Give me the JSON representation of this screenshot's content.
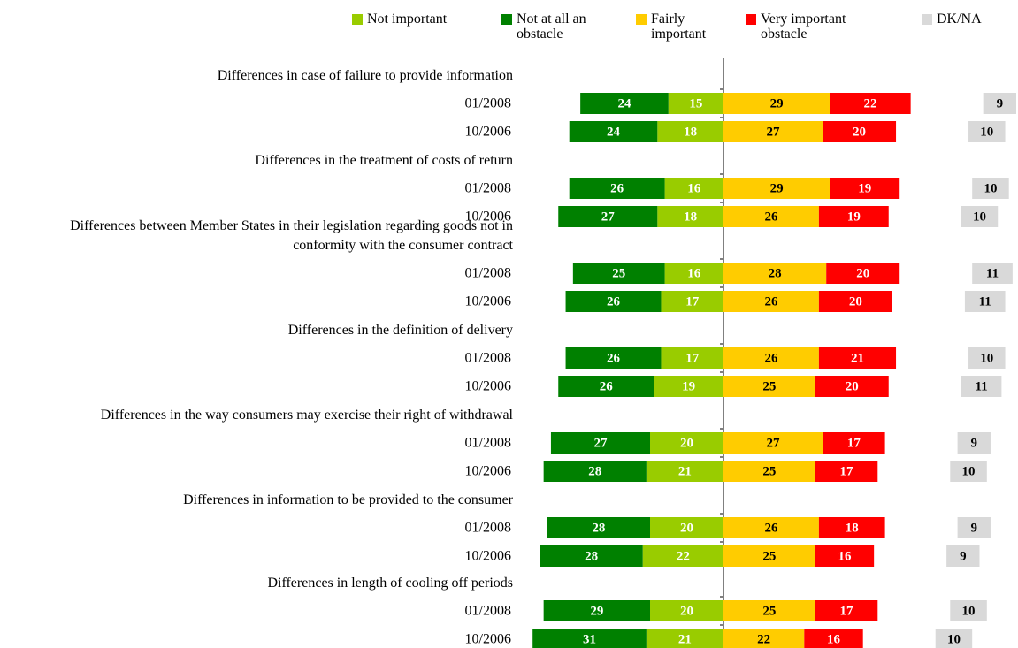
{
  "chart_data": {
    "type": "diverging-bar",
    "categories": [
      "01/2008",
      "10/2006",
      "01/2008",
      "10/2006",
      "01/2008",
      "10/2006",
      "01/2008",
      "10/2006",
      "01/2008",
      "10/2006",
      "01/2008",
      "10/2006",
      "01/2008",
      "10/2006"
    ],
    "groups": [
      "Differences in case of failure to provide information",
      "Differences in the treatment of costs of return",
      "Differences between Member States in their legislation regarding goods not in conformity with the consumer contract",
      "Differences in the definition of delivery",
      "Differences in the way consumers may exercise their right of withdrawal",
      "Differences in information to be provided to the consumer",
      "Differences in length of cooling off periods"
    ],
    "series": [
      {
        "name": "Not important",
        "color": "#99cc00",
        "values": [
          15,
          18,
          16,
          18,
          16,
          17,
          17,
          19,
          20,
          21,
          20,
          22,
          20,
          21
        ]
      },
      {
        "name": "Not at all an obstacle",
        "color": "#008000",
        "values": [
          24,
          24,
          26,
          27,
          25,
          26,
          26,
          26,
          27,
          28,
          28,
          28,
          29,
          31
        ]
      },
      {
        "name": "Fairly important",
        "color": "#ffcc00",
        "values": [
          29,
          27,
          29,
          26,
          28,
          26,
          26,
          25,
          27,
          25,
          26,
          25,
          25,
          22
        ]
      },
      {
        "name": "Very important obstacle",
        "color": "#ff0000",
        "values": [
          22,
          20,
          19,
          19,
          20,
          20,
          21,
          20,
          17,
          17,
          18,
          16,
          17,
          16
        ]
      },
      {
        "name": "DK/NA",
        "color": "#d9d9d9",
        "values": [
          9,
          10,
          10,
          10,
          11,
          11,
          10,
          11,
          9,
          10,
          9,
          9,
          10,
          10
        ]
      }
    ]
  }
}
